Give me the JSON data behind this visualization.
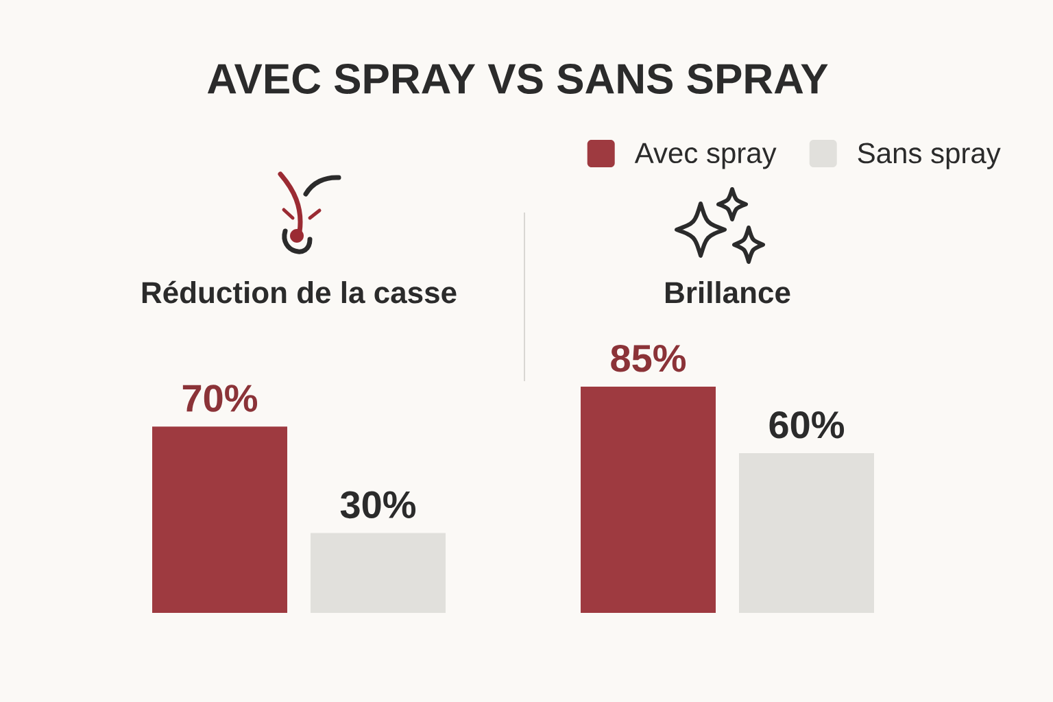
{
  "chart_data": {
    "type": "bar",
    "title": "AVEC SPRAY VS SANS SPRAY",
    "categories": [
      "Réduction de la casse",
      "Brillance"
    ],
    "series": [
      {
        "name": "Avec spray",
        "color": "#9e3a40",
        "values": [
          70,
          85
        ],
        "value_labels": [
          "70%",
          "85%"
        ]
      },
      {
        "name": "Sans spray",
        "color": "#e1e0dc",
        "values": [
          30,
          60
        ],
        "value_labels": [
          "30%",
          "60%"
        ]
      }
    ],
    "legend": "top right"
  }
}
